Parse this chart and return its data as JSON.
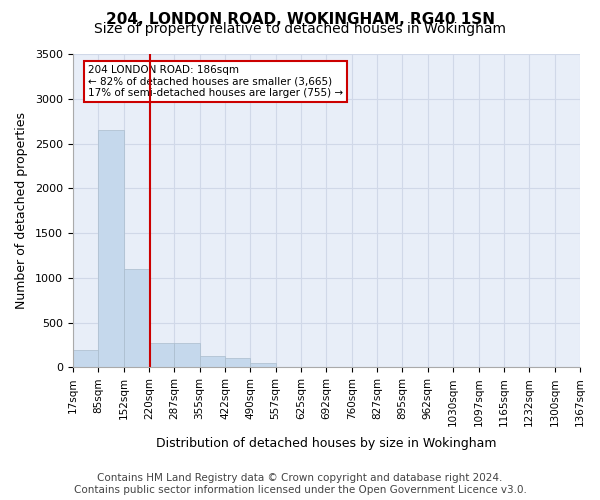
{
  "title1": "204, LONDON ROAD, WOKINGHAM, RG40 1SN",
  "title2": "Size of property relative to detached houses in Wokingham",
  "xlabel": "Distribution of detached houses by size in Wokingham",
  "ylabel": "Number of detached properties",
  "footnote": "Contains HM Land Registry data © Crown copyright and database right 2024.\nContains public sector information licensed under the Open Government Licence v3.0.",
  "bin_labels": [
    "17sqm",
    "85sqm",
    "152sqm",
    "220sqm",
    "287sqm",
    "355sqm",
    "422sqm",
    "490sqm",
    "557sqm",
    "625sqm",
    "692sqm",
    "760sqm",
    "827sqm",
    "895sqm",
    "962sqm",
    "1030sqm",
    "1097sqm",
    "1165sqm",
    "1232sqm",
    "1300sqm",
    "1367sqm"
  ],
  "bar_values": [
    200,
    2650,
    1100,
    270,
    270,
    130,
    100,
    50,
    0,
    0,
    0,
    0,
    0,
    0,
    0,
    0,
    0,
    0,
    0,
    0
  ],
  "bar_color": "#c5d8ec",
  "bar_edge_color": "#aabccc",
  "grid_color": "#d0d8e8",
  "bg_color": "#e8eef8",
  "vline_x": 2.55,
  "vline_color": "#cc0000",
  "annotation_text": "204 LONDON ROAD: 186sqm\n← 82% of detached houses are smaller (3,665)\n17% of semi-detached houses are larger (755) →",
  "annotation_box_color": "#cc0000",
  "ylim": [
    0,
    3500
  ],
  "title_fontsize": 11,
  "subtitle_fontsize": 10,
  "tick_fontsize": 7.5,
  "ylabel_fontsize": 9,
  "xlabel_fontsize": 9,
  "footnote_fontsize": 7.5
}
